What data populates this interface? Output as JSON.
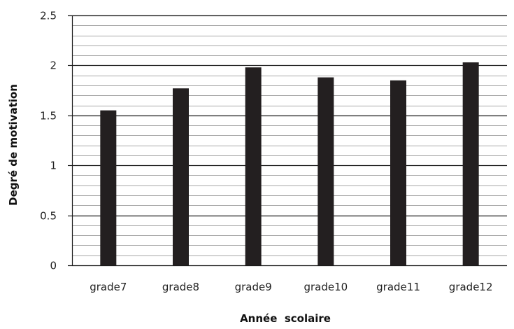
{
  "chart_data": {
    "type": "bar",
    "categories": [
      "grade7",
      "grade8",
      "grade9",
      "grade10",
      "grade11",
      "grade12"
    ],
    "values": [
      1.55,
      1.77,
      1.98,
      1.88,
      1.85,
      2.03
    ],
    "title": "",
    "xlabel": "Année  scolaire",
    "ylabel": "Degré de motivation",
    "ylim": [
      0,
      2.5
    ],
    "yticks": [
      "0",
      "0.5",
      "1",
      "1.5",
      "2",
      "2.5"
    ],
    "major_step": 0.5,
    "minor_step": 0.1,
    "grid": true,
    "legend": "none",
    "bar_color": "#231f20",
    "grid_color": "#222222"
  }
}
